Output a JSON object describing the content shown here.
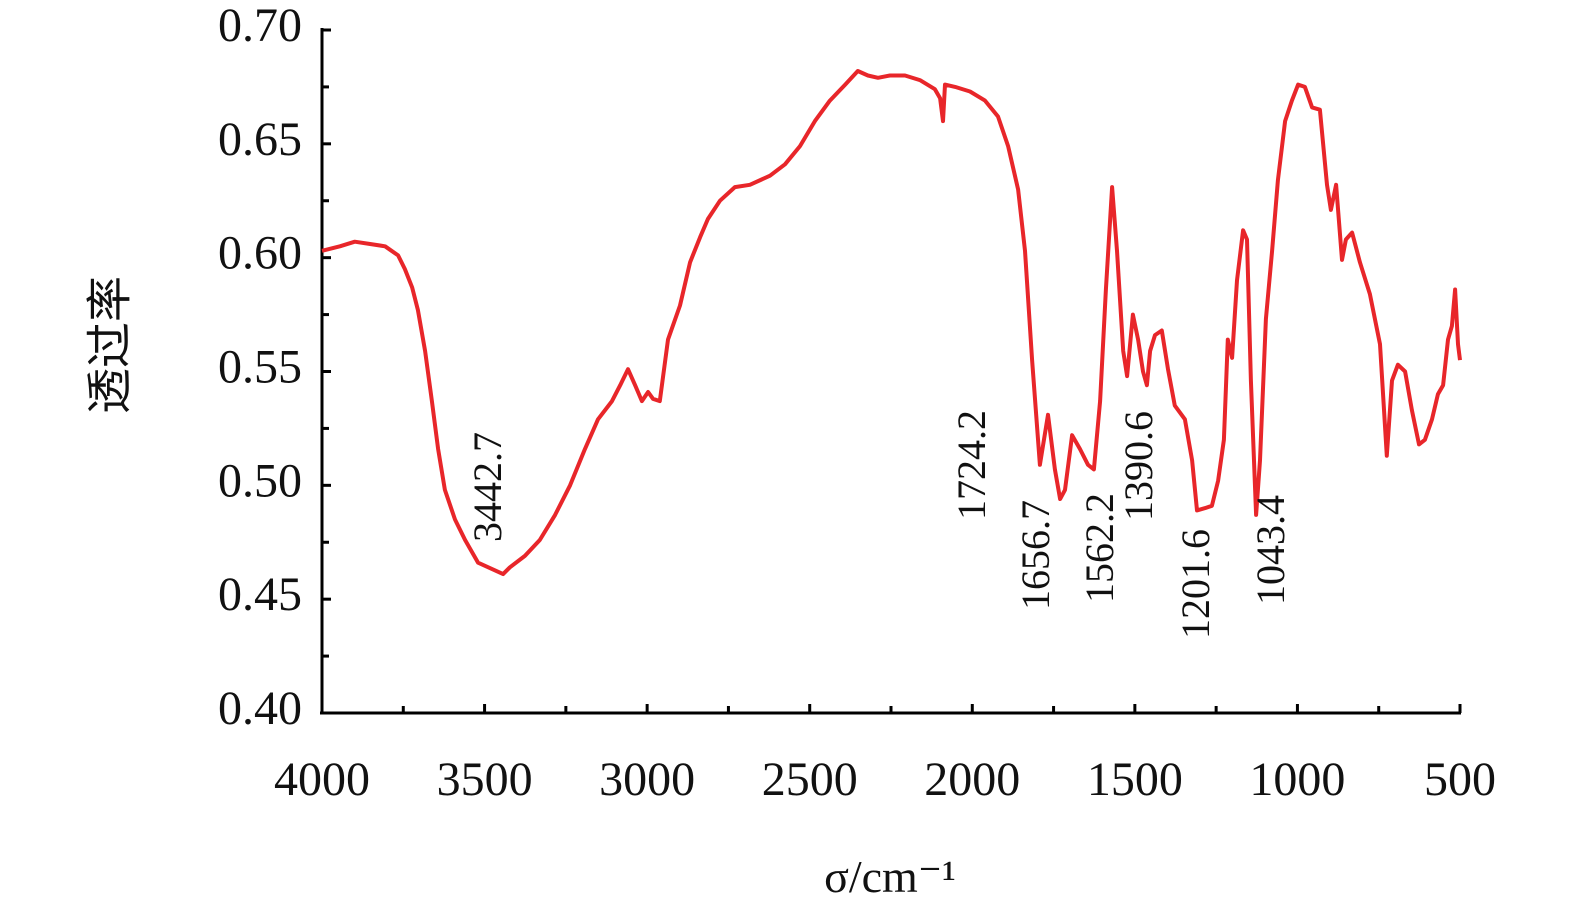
{
  "chart_data": {
    "type": "line",
    "x_label": "σ/cm⁻¹",
    "y_label": "透过率",
    "color": "#e8262a",
    "xlim": [
      4000,
      500
    ],
    "xticks": [
      4000,
      3500,
      3000,
      2500,
      2000,
      1500,
      1000,
      500
    ],
    "xminorticks": [
      3750,
      3250,
      2750,
      2250,
      1750,
      1250,
      750
    ],
    "ylim": [
      0.4,
      0.7
    ],
    "yticks": [
      {
        "value": 0.4,
        "label": "0.40"
      },
      0.45,
      {
        "value": 0.5,
        "label": "0.50"
      },
      0.55,
      {
        "value": 0.6,
        "label": "0.60"
      },
      0.65,
      {
        "value": 0.7,
        "label": "0.70"
      }
    ],
    "yminorticks": [
      0.425,
      0.475,
      0.525,
      0.575,
      0.625,
      0.675
    ],
    "annotations": [
      "3442.7",
      "1724.2",
      "1656.7",
      "1562.2",
      "1390.6",
      "1201.6",
      "1043.4"
    ],
    "x": [
      4000,
      3945,
      3899,
      3852,
      3806,
      3766,
      3745,
      3723,
      3705,
      3683,
      3662,
      3643,
      3622,
      3591,
      3560,
      3520,
      3443,
      3422,
      3376,
      3330,
      3283,
      3237,
      3191,
      3151,
      3108,
      3083,
      3059,
      3037,
      3016,
      2997,
      2982,
      2961,
      2936,
      2899,
      2868,
      2837,
      2813,
      2776,
      2730,
      2684,
      2622,
      2576,
      2530,
      2484,
      2438,
      2391,
      2352,
      2321,
      2290,
      2253,
      2207,
      2161,
      2115,
      2099,
      2090,
      2084,
      2053,
      2007,
      1961,
      1921,
      1890,
      1859,
      1838,
      1816,
      1792,
      1767,
      1746,
      1730,
      1715,
      1693,
      1669,
      1644,
      1626,
      1607,
      1589,
      1570,
      1555,
      1536,
      1524,
      1506,
      1490,
      1475,
      1463,
      1453,
      1438,
      1417,
      1398,
      1377,
      1346,
      1324,
      1309,
      1284,
      1263,
      1244,
      1226,
      1214,
      1201,
      1186,
      1167,
      1155,
      1143,
      1127,
      1115,
      1097,
      1078,
      1060,
      1038,
      1017,
      998,
      977,
      955,
      931,
      909,
      897,
      881,
      863,
      851,
      832,
      808,
      777,
      746,
      725,
      709,
      691,
      669,
      648,
      626,
      608,
      586,
      568,
      552,
      537,
      525,
      515,
      506,
      500
    ],
    "values": [
      0.603,
      0.605,
      0.607,
      0.606,
      0.605,
      0.601,
      0.595,
      0.587,
      0.577,
      0.559,
      0.537,
      0.516,
      0.498,
      0.485,
      0.476,
      0.466,
      0.461,
      0.464,
      0.469,
      0.476,
      0.487,
      0.5,
      0.516,
      0.529,
      0.537,
      0.544,
      0.551,
      0.544,
      0.537,
      0.541,
      0.538,
      0.537,
      0.564,
      0.579,
      0.598,
      0.609,
      0.617,
      0.625,
      0.631,
      0.632,
      0.636,
      0.641,
      0.649,
      0.66,
      0.669,
      0.676,
      0.682,
      0.68,
      0.679,
      0.68,
      0.68,
      0.678,
      0.674,
      0.67,
      0.66,
      0.676,
      0.675,
      0.673,
      0.669,
      0.662,
      0.649,
      0.63,
      0.603,
      0.555,
      0.509,
      0.531,
      0.507,
      0.494,
      0.498,
      0.522,
      0.516,
      0.509,
      0.507,
      0.537,
      0.586,
      0.631,
      0.603,
      0.559,
      0.548,
      0.575,
      0.564,
      0.55,
      0.544,
      0.559,
      0.566,
      0.568,
      0.551,
      0.535,
      0.529,
      0.511,
      0.489,
      0.49,
      0.491,
      0.502,
      0.52,
      0.564,
      0.556,
      0.59,
      0.612,
      0.608,
      0.546,
      0.487,
      0.511,
      0.573,
      0.603,
      0.634,
      0.66,
      0.669,
      0.676,
      0.675,
      0.666,
      0.665,
      0.632,
      0.621,
      0.632,
      0.599,
      0.608,
      0.611,
      0.598,
      0.584,
      0.562,
      0.513,
      0.546,
      0.553,
      0.55,
      0.533,
      0.518,
      0.52,
      0.529,
      0.54,
      0.544,
      0.564,
      0.57,
      0.586,
      0.562,
      0.555
    ]
  }
}
